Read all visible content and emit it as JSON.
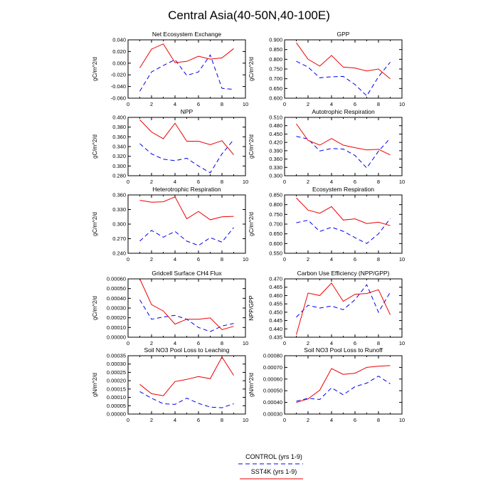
{
  "figure": {
    "title": "Central Asia(40-50N,40-100E)",
    "colors": {
      "control": "#0000ee",
      "sst4k": "#ee0000",
      "axis": "#000000"
    }
  },
  "legend": [
    {
      "label": "CONTROL (yrs 1-9)",
      "series": "control",
      "style": "dashed",
      "color": "#0000ee"
    },
    {
      "label": "SST4K (yrs 1-9)",
      "series": "sst4k",
      "style": "solid",
      "color": "#ee0000"
    }
  ],
  "chart_data": [
    {
      "type": "line",
      "title": "Net Ecosystem Exchange",
      "ylabel": "gC/m^2/d",
      "xlim": [
        0,
        10
      ],
      "xticks": [
        0,
        2,
        4,
        6,
        8,
        10
      ],
      "ylim": [
        -0.06,
        0.04
      ],
      "yticks": [
        "-0.060",
        "-0.040",
        "-0.020",
        "0.000",
        "0.020",
        "0.040"
      ],
      "x": [
        1,
        2,
        3,
        4,
        5,
        6,
        7,
        8,
        9
      ],
      "series": [
        {
          "name": "CONTROL (yrs 1-9)",
          "values": [
            -0.048,
            -0.015,
            -0.004,
            0.006,
            -0.021,
            -0.015,
            0.014,
            -0.043,
            -0.045
          ]
        },
        {
          "name": "SST4K (yrs 1-9)",
          "values": [
            -0.008,
            0.024,
            0.033,
            0.001,
            0.003,
            0.012,
            0.007,
            0.009,
            0.025
          ]
        }
      ]
    },
    {
      "type": "line",
      "title": "GPP",
      "ylabel": "gC/m^2/d",
      "xlim": [
        0,
        10
      ],
      "xticks": [
        0,
        2,
        4,
        6,
        8,
        10
      ],
      "ylim": [
        0.6,
        0.9
      ],
      "yticks": [
        "0.600",
        "0.650",
        "0.700",
        "0.750",
        "0.800",
        "0.850",
        "0.900"
      ],
      "x": [
        1,
        2,
        3,
        4,
        5,
        6,
        7,
        8,
        9
      ],
      "series": [
        {
          "name": "CONTROL (yrs 1-9)",
          "values": [
            0.79,
            0.76,
            0.705,
            0.71,
            0.712,
            0.67,
            0.612,
            0.71,
            0.785
          ]
        },
        {
          "name": "SST4K (yrs 1-9)",
          "values": [
            0.885,
            0.8,
            0.765,
            0.82,
            0.76,
            0.755,
            0.74,
            0.75,
            0.7
          ]
        }
      ]
    },
    {
      "type": "line",
      "title": "NPP",
      "ylabel": "gC/m^2/d",
      "xlim": [
        0,
        10
      ],
      "xticks": [
        0,
        2,
        4,
        6,
        8,
        10
      ],
      "ylim": [
        0.28,
        0.4
      ],
      "yticks": [
        "0.280",
        "0.300",
        "0.320",
        "0.340",
        "0.360",
        "0.380",
        "0.400"
      ],
      "x": [
        1,
        2,
        3,
        4,
        5,
        6,
        7,
        8,
        9
      ],
      "series": [
        {
          "name": "CONTROL (yrs 1-9)",
          "values": [
            0.346,
            0.325,
            0.314,
            0.311,
            0.316,
            0.3,
            0.286,
            0.325,
            0.354
          ]
        },
        {
          "name": "SST4K (yrs 1-9)",
          "values": [
            0.395,
            0.37,
            0.356,
            0.388,
            0.351,
            0.351,
            0.344,
            0.352,
            0.323
          ]
        }
      ]
    },
    {
      "type": "line",
      "title": "Autotrophic Respiration",
      "ylabel": "gC/m^2/d",
      "xlim": [
        0,
        10
      ],
      "xticks": [
        0,
        2,
        4,
        6,
        8,
        10
      ],
      "ylim": [
        0.3,
        0.51
      ],
      "yticks": [
        "0.300",
        "0.330",
        "0.360",
        "0.390",
        "0.420",
        "0.450",
        "0.480",
        "0.510"
      ],
      "x": [
        1,
        2,
        3,
        4,
        5,
        6,
        7,
        8,
        9
      ],
      "series": [
        {
          "name": "CONTROL (yrs 1-9)",
          "values": [
            0.442,
            0.432,
            0.389,
            0.398,
            0.396,
            0.373,
            0.328,
            0.388,
            0.435
          ]
        },
        {
          "name": "SST4K (yrs 1-9)",
          "values": [
            0.487,
            0.427,
            0.41,
            0.434,
            0.41,
            0.401,
            0.393,
            0.395,
            0.375
          ]
        }
      ]
    },
    {
      "type": "line",
      "title": "Heterotrophic Respiration",
      "ylabel": "gC/m^2/d",
      "xlim": [
        0,
        10
      ],
      "xticks": [
        0,
        2,
        4,
        6,
        8,
        10
      ],
      "ylim": [
        0.24,
        0.36
      ],
      "yticks": [
        "0.240",
        "0.270",
        "0.300",
        "0.330",
        "0.360"
      ],
      "x": [
        1,
        2,
        3,
        4,
        5,
        6,
        7,
        8,
        9
      ],
      "series": [
        {
          "name": "CONTROL (yrs 1-9)",
          "values": [
            0.265,
            0.287,
            0.273,
            0.285,
            0.265,
            0.256,
            0.272,
            0.263,
            0.293
          ]
        },
        {
          "name": "SST4K (yrs 1-9)",
          "values": [
            0.349,
            0.345,
            0.346,
            0.356,
            0.311,
            0.326,
            0.309,
            0.315,
            0.316
          ]
        }
      ]
    },
    {
      "type": "line",
      "title": "Ecosystem Respiration",
      "ylabel": "gC/m^2/d",
      "xlim": [
        0,
        10
      ],
      "xticks": [
        0,
        2,
        4,
        6,
        8,
        10
      ],
      "ylim": [
        0.55,
        0.85
      ],
      "yticks": [
        "0.550",
        "0.600",
        "0.650",
        "0.700",
        "0.750",
        "0.800",
        "0.850"
      ],
      "x": [
        1,
        2,
        3,
        4,
        5,
        6,
        7,
        8,
        9
      ],
      "series": [
        {
          "name": "CONTROL (yrs 1-9)",
          "values": [
            0.707,
            0.72,
            0.662,
            0.684,
            0.663,
            0.63,
            0.6,
            0.65,
            0.728
          ]
        },
        {
          "name": "SST4K (yrs 1-9)",
          "values": [
            0.835,
            0.772,
            0.756,
            0.79,
            0.721,
            0.727,
            0.703,
            0.71,
            0.692
          ]
        }
      ]
    },
    {
      "type": "line",
      "title": "Gridcell Surface CH4 Flux",
      "ylabel": "gC/m^2/d",
      "xlim": [
        0,
        10
      ],
      "xticks": [
        0,
        2,
        4,
        6,
        8,
        10
      ],
      "ylim": [
        0,
        0.0006
      ],
      "yticks": [
        "0.00000",
        "0.00010",
        "0.00020",
        "0.00030",
        "0.00040",
        "0.00050",
        "0.00060"
      ],
      "x": [
        1,
        2,
        3,
        4,
        5,
        6,
        7,
        8,
        9
      ],
      "series": [
        {
          "name": "CONTROL (yrs 1-9)",
          "values": [
            0.000385,
            0.000185,
            0.000208,
            0.000225,
            0.000185,
            0.0001,
            5.8e-05,
            0.000115,
            0.000142
          ]
        },
        {
          "name": "SST4K (yrs 1-9)",
          "values": [
            0.0006,
            0.000335,
            0.00027,
            0.000135,
            0.000185,
            0.000185,
            0.000198,
            7.8e-05,
            0.000112
          ]
        }
      ]
    },
    {
      "type": "line",
      "title": "Carbon Use Efficiency (NPP/GPP)",
      "ylabel": "NPP/GPP",
      "xlim": [
        0,
        10
      ],
      "xticks": [
        0,
        2,
        4,
        6,
        8,
        10
      ],
      "ylim": [
        0.435,
        0.47
      ],
      "yticks": [
        "0.435",
        "0.440",
        "0.445",
        "0.450",
        "0.455",
        "0.460",
        "0.465",
        "0.470"
      ],
      "x": [
        1,
        2,
        3,
        4,
        5,
        6,
        7,
        8,
        9
      ],
      "series": [
        {
          "name": "CONTROL (yrs 1-9)",
          "values": [
            0.447,
            0.4542,
            0.4525,
            0.4537,
            0.4515,
            0.4575,
            0.4665,
            0.45,
            0.462
          ]
        },
        {
          "name": "SST4K (yrs 1-9)",
          "values": [
            0.4365,
            0.4615,
            0.46,
            0.4675,
            0.4565,
            0.4608,
            0.4612,
            0.4635,
            0.4485
          ]
        }
      ]
    },
    {
      "type": "line",
      "title": "Soil NO3 Pool Loss to Leaching",
      "ylabel": "gN/m^2/d",
      "xlim": [
        0,
        10
      ],
      "xticks": [
        0,
        2,
        4,
        6,
        8,
        10
      ],
      "ylim": [
        0,
        0.00035
      ],
      "yticks": [
        "0.00000",
        "0.00005",
        "0.00010",
        "0.00015",
        "0.00020",
        "0.00025",
        "0.00030",
        "0.00035"
      ],
      "x": [
        1,
        2,
        3,
        4,
        5,
        6,
        7,
        8,
        9
      ],
      "series": [
        {
          "name": "CONTROL (yrs 1-9)",
          "values": [
            0.000135,
            9.5e-05,
            6.2e-05,
            5.8e-05,
            9.5e-05,
            6.4e-05,
            4.2e-05,
            3.8e-05,
            6.2e-05
          ]
        },
        {
          "name": "SST4K (yrs 1-9)",
          "values": [
            0.000178,
            0.000122,
            0.00011,
            0.000195,
            0.000208,
            0.000225,
            0.000212,
            0.000342,
            0.000232
          ]
        }
      ]
    },
    {
      "type": "line",
      "title": "Soil NO3 Pool Loss to Runoff",
      "ylabel": "gN/m^2/d",
      "xlim": [
        0,
        10
      ],
      "xticks": [
        0,
        2,
        4,
        6,
        8,
        10
      ],
      "ylim": [
        0.0003,
        0.0008
      ],
      "yticks": [
        "0.00030",
        "0.00040",
        "0.00050",
        "0.00060",
        "0.00070",
        "0.00080"
      ],
      "x": [
        1,
        2,
        3,
        4,
        5,
        6,
        7,
        8,
        9
      ],
      "series": [
        {
          "name": "CONTROL (yrs 1-9)",
          "values": [
            0.00041,
            0.000435,
            0.000425,
            0.000525,
            0.000465,
            0.000535,
            0.000565,
            0.000625,
            0.00056
          ]
        },
        {
          "name": "SST4K (yrs 1-9)",
          "values": [
            0.0004,
            0.00043,
            0.000505,
            0.00069,
            0.00064,
            0.00065,
            0.0007,
            0.00071,
            0.000715
          ]
        }
      ]
    }
  ]
}
